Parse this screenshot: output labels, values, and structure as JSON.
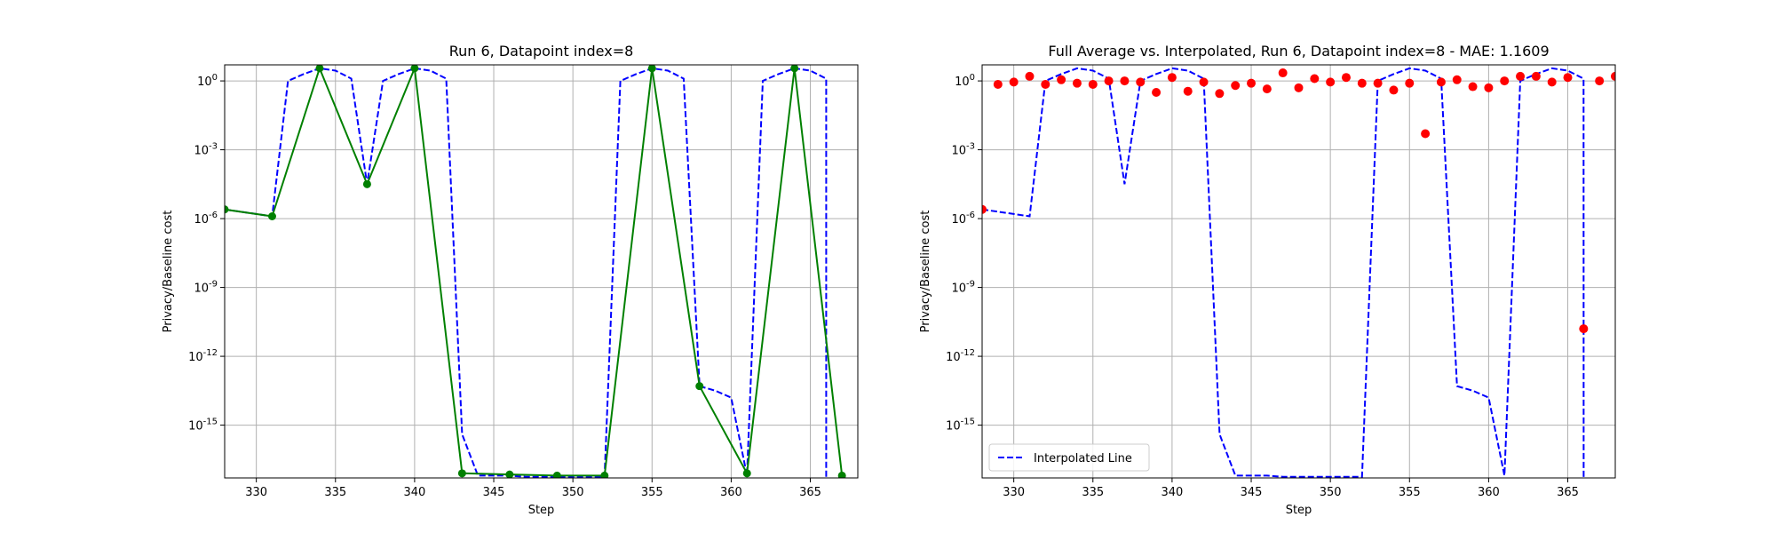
{
  "chart_data": [
    {
      "type": "line",
      "title": "Run 6, Datapoint index=8",
      "xlabel": "Step",
      "ylabel": "Privacy/Baseline cost",
      "xlim": [
        328,
        368
      ],
      "ylim_log10": [
        -17.3,
        0.7
      ],
      "yscale": "log",
      "grid": true,
      "xticks": [
        330,
        335,
        340,
        345,
        350,
        355,
        360,
        365
      ],
      "yticks": [
        {
          "exp": 0,
          "label": "10^0"
        },
        {
          "exp": -3,
          "label": "10^-3"
        },
        {
          "exp": -6,
          "label": "10^-6"
        },
        {
          "exp": -9,
          "label": "10^-9"
        },
        {
          "exp": -12,
          "label": "10^-12"
        },
        {
          "exp": -15,
          "label": "10^-15"
        }
      ],
      "series": [
        {
          "style": "dashed",
          "color": "#0000ff",
          "x": [
            328,
            329,
            330,
            331,
            332,
            333,
            334,
            335,
            336,
            337,
            338,
            339,
            340,
            341,
            342,
            343,
            344,
            345,
            346,
            347,
            348,
            349,
            350,
            351,
            352,
            353,
            354,
            355,
            356,
            357,
            358,
            359,
            360,
            361,
            362,
            363,
            364,
            365,
            366,
            366.001
          ],
          "y_log10": [
            -5.6,
            -5.7,
            -5.8,
            -5.9,
            0.0,
            0.3,
            0.55,
            0.45,
            0.1,
            -4.5,
            0.0,
            0.3,
            0.55,
            0.45,
            0.1,
            -15.4,
            -17.2,
            -17.2,
            -17.2,
            -17.25,
            -17.25,
            -17.25,
            -17.25,
            -17.25,
            -17.25,
            0.0,
            0.3,
            0.55,
            0.45,
            0.1,
            -13.3,
            -13.5,
            -13.8,
            -17.2,
            0.0,
            0.3,
            0.55,
            0.45,
            0.1,
            -17.3
          ]
        },
        {
          "style": "solid-markers",
          "color": "#008000",
          "x": [
            328,
            331,
            334,
            337,
            340,
            343,
            346,
            349,
            352,
            355,
            358,
            361,
            364,
            367
          ],
          "y_log10": [
            -5.6,
            -5.9,
            0.55,
            -4.5,
            0.55,
            -17.1,
            -17.15,
            -17.2,
            -17.2,
            0.55,
            -13.3,
            -17.1,
            0.55,
            -17.2
          ]
        }
      ]
    },
    {
      "type": "line",
      "title": "Full Average vs. Interpolated, Run 6, Datapoint index=8 - MAE: 1.1609",
      "xlabel": "Step",
      "ylabel": "Privacy/Baseline cost",
      "xlim": [
        328,
        368
      ],
      "ylim_log10": [
        -17.3,
        0.7
      ],
      "yscale": "log",
      "grid": true,
      "xticks": [
        330,
        335,
        340,
        345,
        350,
        355,
        360,
        365
      ],
      "yticks": [
        {
          "exp": 0,
          "label": "10^0"
        },
        {
          "exp": -3,
          "label": "10^-3"
        },
        {
          "exp": -6,
          "label": "10^-6"
        },
        {
          "exp": -9,
          "label": "10^-9"
        },
        {
          "exp": -12,
          "label": "10^-12"
        },
        {
          "exp": -15,
          "label": "10^-15"
        }
      ],
      "legend": {
        "position": "lower-left",
        "entries": [
          "Interpolated Line"
        ]
      },
      "series": [
        {
          "name": "Interpolated Line",
          "style": "dashed",
          "color": "#0000ff",
          "x": [
            328,
            329,
            330,
            331,
            332,
            333,
            334,
            335,
            336,
            337,
            338,
            339,
            340,
            341,
            342,
            343,
            344,
            345,
            346,
            347,
            348,
            349,
            350,
            351,
            352,
            353,
            354,
            355,
            356,
            357,
            358,
            359,
            360,
            361,
            362,
            363,
            364,
            365,
            366,
            366.001
          ],
          "y_log10": [
            -5.6,
            -5.7,
            -5.8,
            -5.9,
            0.0,
            0.3,
            0.55,
            0.45,
            0.1,
            -4.5,
            0.0,
            0.3,
            0.55,
            0.45,
            0.1,
            -15.4,
            -17.2,
            -17.2,
            -17.2,
            -17.25,
            -17.25,
            -17.25,
            -17.25,
            -17.25,
            -17.25,
            0.0,
            0.3,
            0.55,
            0.45,
            0.1,
            -13.3,
            -13.5,
            -13.8,
            -17.2,
            0.0,
            0.3,
            0.55,
            0.45,
            0.1,
            -17.3
          ]
        },
        {
          "style": "scatter",
          "color": "#ff0000",
          "x": [
            328,
            329,
            330,
            331,
            332,
            333,
            334,
            335,
            336,
            337,
            338,
            339,
            340,
            341,
            342,
            343,
            344,
            345,
            346,
            347,
            348,
            349,
            350,
            351,
            352,
            353,
            354,
            355,
            356,
            357,
            358,
            359,
            360,
            361,
            362,
            363,
            364,
            365,
            366,
            367,
            368
          ],
          "y_log10": [
            -5.6,
            -0.15,
            -0.05,
            0.2,
            -0.15,
            0.05,
            -0.1,
            -0.15,
            0.0,
            0.0,
            -0.05,
            -0.5,
            0.15,
            -0.45,
            -0.05,
            -0.55,
            -0.2,
            -0.1,
            -0.35,
            0.35,
            -0.3,
            0.1,
            -0.05,
            0.15,
            -0.1,
            -0.1,
            -0.4,
            -0.1,
            -2.3,
            -0.05,
            0.05,
            -0.25,
            -0.3,
            0.0,
            0.2,
            0.2,
            -0.05,
            0.15,
            -10.8,
            0.0,
            0.2
          ]
        }
      ]
    }
  ]
}
